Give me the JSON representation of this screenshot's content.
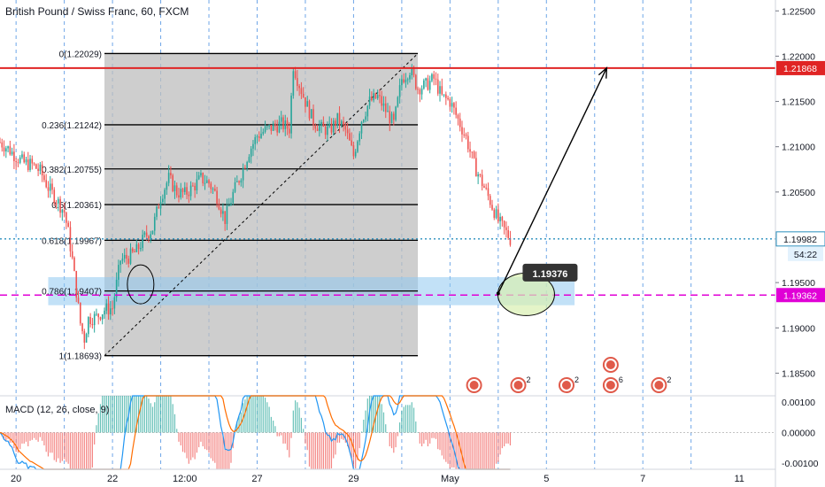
{
  "chart_data": {
    "type": "candlestick",
    "title": "British Pound / Swiss Franc, 60, FXCM",
    "symbol": "British Pound / Swiss Franc",
    "interval": "60",
    "source": "FXCM",
    "price_axis": {
      "ylim": [
        1.1825,
        1.2262
      ],
      "ticks": [
        "1.22500",
        "1.22000",
        "1.21500",
        "1.21000",
        "1.20500",
        "1.19500",
        "1.19000",
        "1.18500"
      ]
    },
    "time_axis": {
      "ticks": [
        {
          "label": "20",
          "t": 8
        },
        {
          "label": "22",
          "t": 56
        },
        {
          "label": "12:00",
          "t": 92
        },
        {
          "label": "27",
          "t": 128
        },
        {
          "label": "29",
          "t": 176
        },
        {
          "label": "May",
          "t": 224
        },
        {
          "label": "5",
          "t": 272
        },
        {
          "label": "7",
          "t": 320
        },
        {
          "label": "11",
          "t": 368
        }
      ]
    },
    "candles": [],
    "candle_anchors": [
      [
        0,
        1.2105
      ],
      [
        4,
        1.2098
      ],
      [
        8,
        1.2089
      ],
      [
        12,
        1.2082
      ],
      [
        16,
        1.208
      ],
      [
        20,
        1.2073
      ],
      [
        24,
        1.2055
      ],
      [
        28,
        1.2042
      ],
      [
        32,
        1.2028
      ],
      [
        34,
        1.2005
      ],
      [
        36,
        1.1975
      ],
      [
        38,
        1.194
      ],
      [
        40,
        1.1905
      ],
      [
        42,
        1.1888
      ],
      [
        44,
        1.191
      ],
      [
        48,
        1.1912
      ],
      [
        52,
        1.192
      ],
      [
        56,
        1.1922
      ],
      [
        60,
        1.1975
      ],
      [
        64,
        1.1978
      ],
      [
        68,
        1.1985
      ],
      [
        72,
        1.2
      ],
      [
        76,
        1.201
      ],
      [
        80,
        1.2045
      ],
      [
        84,
        1.2065
      ],
      [
        88,
        1.205
      ],
      [
        92,
        1.2048
      ],
      [
        96,
        1.2055
      ],
      [
        100,
        1.2065
      ],
      [
        104,
        1.206
      ],
      [
        108,
        1.2045
      ],
      [
        112,
        1.202
      ],
      [
        116,
        1.2048
      ],
      [
        120,
        1.207
      ],
      [
        124,
        1.2095
      ],
      [
        128,
        1.2112
      ],
      [
        132,
        1.2118
      ],
      [
        136,
        1.2122
      ],
      [
        140,
        1.2125
      ],
      [
        144,
        1.212
      ],
      [
        146,
        1.219
      ],
      [
        148,
        1.2175
      ],
      [
        152,
        1.215
      ],
      [
        156,
        1.2128
      ],
      [
        160,
        1.212
      ],
      [
        164,
        1.2118
      ],
      [
        168,
        1.213
      ],
      [
        172,
        1.2118
      ],
      [
        176,
        1.209
      ],
      [
        180,
        1.213
      ],
      [
        184,
        1.215
      ],
      [
        188,
        1.2155
      ],
      [
        192,
        1.214
      ],
      [
        196,
        1.2125
      ],
      [
        200,
        1.2175
      ],
      [
        204,
        1.2185
      ],
      [
        208,
        1.2165
      ],
      [
        212,
        1.2168
      ],
      [
        216,
        1.2175
      ],
      [
        220,
        1.2155
      ],
      [
        224,
        1.215
      ],
      [
        228,
        1.213
      ],
      [
        232,
        1.211
      ],
      [
        236,
        1.208
      ],
      [
        240,
        1.206
      ],
      [
        244,
        1.204
      ],
      [
        248,
        1.2018
      ],
      [
        252,
        1.2005
      ],
      [
        254,
        1.1998
      ]
    ],
    "fibonacci": {
      "levels": [
        {
          "ratio": "0",
          "label": "0(1.22029)",
          "price": 1.22029
        },
        {
          "ratio": "0.236",
          "label": "0.236(1.21242)",
          "price": 1.21242
        },
        {
          "ratio": "0.382",
          "label": "0.382(1.20755)",
          "price": 1.20755
        },
        {
          "ratio": "0.5",
          "label": "0.5(1.20361)",
          "price": 1.20361
        },
        {
          "ratio": "0.618",
          "label": "0.618(1.19967)",
          "price": 1.19967
        },
        {
          "ratio": "0.786",
          "label": "0.786(1.19407)",
          "price": 1.19407
        },
        {
          "ratio": "1",
          "label": "1(1.18693)",
          "price": 1.18693
        }
      ],
      "t_start": 52,
      "t_end": 208
    },
    "horizontal_lines": [
      {
        "label": "1.21868",
        "price": 1.21868,
        "color": "#e02424",
        "style": "solid"
      },
      {
        "label": "1.19982",
        "price": 1.19982,
        "color": "#2a8fbd",
        "style": "dotted"
      },
      {
        "label": "1.19362",
        "price": 1.19362,
        "color": "#e000d6",
        "style": "dashed"
      }
    ],
    "countdown": "54:22",
    "annotations": [
      {
        "type": "price-label",
        "text": "1.19376",
        "price": 1.19376,
        "t": 254
      },
      {
        "type": "arrow",
        "from": {
          "t": 248,
          "price": 1.1938
        },
        "to": {
          "t": 302,
          "price": 1.2187
        }
      },
      {
        "type": "zone",
        "price_top": 1.1956,
        "price_bottom": 1.1925,
        "t_start": 24,
        "t_end": 286
      },
      {
        "type": "ellipse",
        "t": 70,
        "price": 1.1948
      },
      {
        "type": "ellipse",
        "t": 254,
        "price": 1.1937
      }
    ],
    "events": [
      {
        "t": 236,
        "count": ""
      },
      {
        "t": 258,
        "count": "2"
      },
      {
        "t": 282,
        "count": "2"
      },
      {
        "t": 304,
        "count": "6"
      },
      {
        "t": 328,
        "count": "2"
      }
    ],
    "macd": {
      "label": "MACD (12, 26, close, 9)",
      "ylim": [
        -0.0012,
        0.0012
      ],
      "ticks": [
        "0.00100",
        "0.00000",
        "-0.00100"
      ],
      "histogram": [],
      "macd_line": [],
      "signal_line": []
    },
    "colors": {
      "up": "#26a69a",
      "down": "#ef5350",
      "macd_line": "#2196f3",
      "signal_line": "#ff6d00",
      "fib_line": "#000000",
      "shade": "#bdbdbd",
      "zone": "#90c8f0",
      "session_line": "#4a90e2"
    }
  }
}
